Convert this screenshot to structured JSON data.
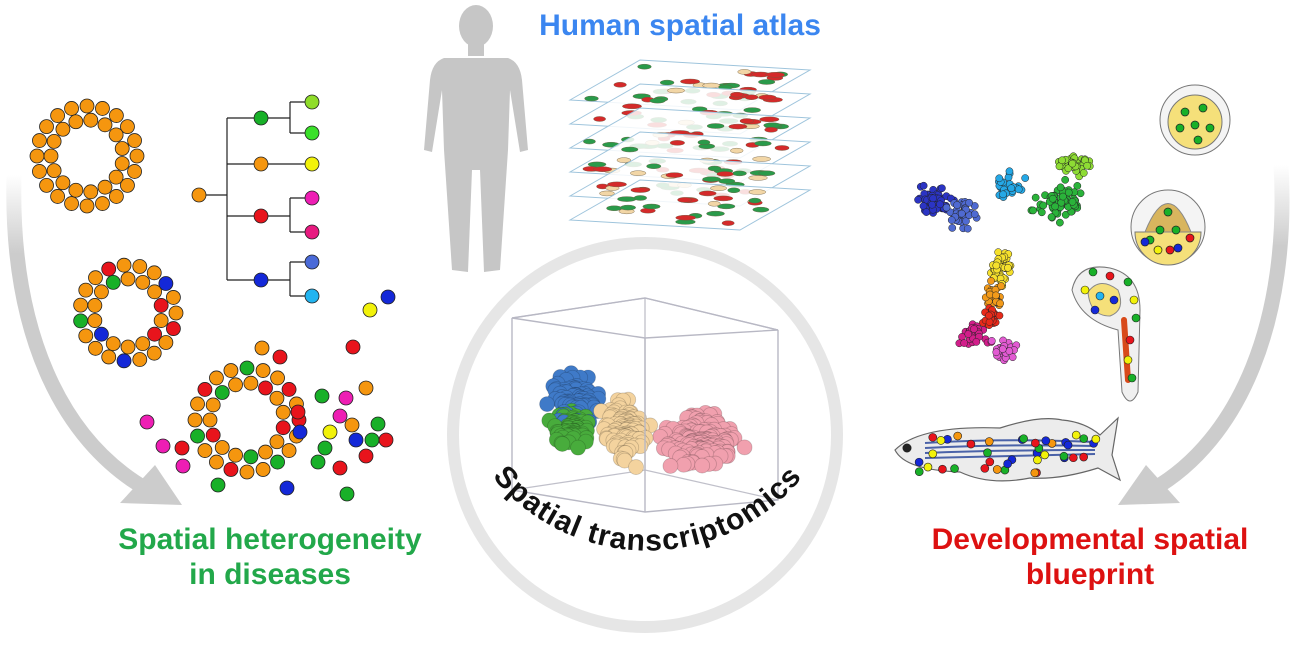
{
  "labels": {
    "human_atlas": "Human spatial atlas",
    "disease_line1": "Spatial heterogeneity",
    "disease_line2": "in diseases",
    "dev_line1": "Developmental spatial",
    "dev_line2": "blueprint",
    "center_ring": "Spatial transcriptomics"
  },
  "colors": {
    "human_title": "#3b86f0",
    "disease_title": "#22a84a",
    "dev_title": "#dd1111",
    "arrow": "#cccccc",
    "silhouette": "#c8c8c8",
    "ring": "#e6e6e6",
    "orange_cell": "#f5960f",
    "red_cell": "#e8141c",
    "green_cell": "#18b028",
    "blue_cell": "#1428d8",
    "yellow_cell": "#f2f20a",
    "magenta_cell": "#ee1eb4",
    "cluster_blue": "#3f7ac8",
    "cluster_green": "#48ac3c",
    "cluster_tan": "#f4d39e",
    "cluster_pink": "#f1a0ae",
    "yolk": "#f5e07a"
  },
  "icons": {
    "human": "human-silhouette-icon",
    "layers": "stacked-tissue-layers-icon",
    "cube": "3d-cell-cube-icon",
    "tree": "lineage-tree-icon",
    "embryo": "embryo-icon",
    "zebrafish": "zebrafish-icon"
  }
}
